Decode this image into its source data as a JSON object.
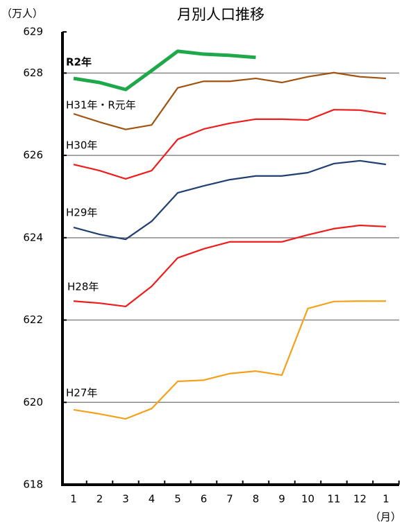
{
  "chart_data": {
    "type": "line",
    "title": "月別人口推移",
    "y_label": "（万人）",
    "x_label": "（月）",
    "categories": [
      "1",
      "2",
      "3",
      "4",
      "5",
      "6",
      "7",
      "8",
      "9",
      "10",
      "11",
      "12",
      "1"
    ],
    "ylim": [
      618,
      629
    ],
    "yticks": [
      618,
      620,
      622,
      624,
      626,
      628,
      629
    ],
    "grid": true,
    "series": [
      {
        "name": "R2年",
        "color": "#1fa84a",
        "values": [
          627.87,
          627.77,
          627.6,
          628.06,
          628.53,
          628.46,
          628.43,
          628.38,
          null,
          null,
          null,
          null,
          null
        ]
      },
      {
        "name": "H31年・R元年",
        "color": "#a0520f",
        "values": [
          627.01,
          626.81,
          626.63,
          626.74,
          627.64,
          627.8,
          627.8,
          627.87,
          627.77,
          627.91,
          628.01,
          627.91,
          627.87
        ]
      },
      {
        "name": "H30年",
        "color": "#ee1c1c",
        "values": [
          625.78,
          625.63,
          625.43,
          625.63,
          626.39,
          626.64,
          626.78,
          626.88,
          626.88,
          626.86,
          627.11,
          627.1,
          627.01
        ]
      },
      {
        "name": "H29年",
        "color": "#1f3f73",
        "values": [
          624.25,
          624.08,
          623.96,
          624.4,
          625.09,
          625.26,
          625.41,
          625.5,
          625.5,
          625.58,
          625.8,
          625.87,
          625.78
        ]
      },
      {
        "name": "H28年",
        "color": "#ee1c1c",
        "values": [
          622.46,
          622.41,
          622.33,
          622.82,
          623.51,
          623.73,
          623.9,
          623.9,
          623.9,
          624.07,
          624.22,
          624.3,
          624.27
        ]
      },
      {
        "name": "H27年",
        "color": "#f5a01a",
        "values": [
          619.82,
          619.72,
          619.6,
          619.85,
          620.51,
          620.54,
          620.7,
          620.76,
          620.66,
          622.28,
          622.45,
          622.46,
          622.46
        ]
      }
    ]
  }
}
